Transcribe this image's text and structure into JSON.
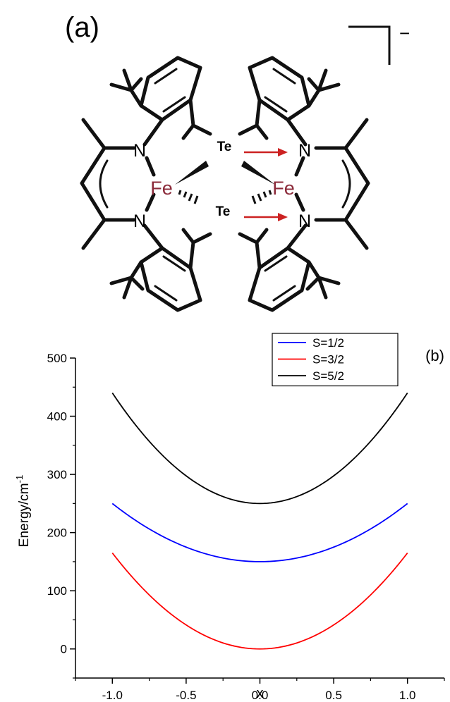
{
  "panel_a": {
    "label": "(a)",
    "charge": "−",
    "atoms": {
      "fe_left": "Fe",
      "fe_right": "Fe",
      "te_top": "Te",
      "te_bottom": "Te",
      "n_left_top": "N",
      "n_left_bottom": "N",
      "n_right_top": "N",
      "n_right_bottom": "N"
    },
    "colors": {
      "fe": "#8b2a3a",
      "arrow": "#cc2222",
      "bond": "#111111"
    }
  },
  "chart_data": {
    "type": "line",
    "panel_label": "(b)",
    "xlabel": "x",
    "ylabel": "Energy/cm",
    "ylabel_superscript": "-1",
    "xlim": [
      -1.25,
      1.25
    ],
    "ylim": [
      -50,
      500
    ],
    "xticks": [
      -1.0,
      -0.5,
      0.0,
      0.5,
      1.0
    ],
    "xtick_labels": [
      "-1.0",
      "-0.5",
      "0.0",
      "0.5",
      "1.0"
    ],
    "yticks": [
      0,
      100,
      200,
      300,
      400,
      500
    ],
    "ytick_labels": [
      "0",
      "100",
      "200",
      "300",
      "400",
      "500"
    ],
    "grid": false,
    "legend_position": "top-right",
    "series": [
      {
        "name": "S=1/2",
        "color": "#0000ff",
        "x": [
          -1.0,
          -0.75,
          -0.5,
          -0.25,
          0.0,
          0.25,
          0.5,
          0.75,
          1.0
        ],
        "y": [
          250,
          206,
          175,
          156,
          150,
          156,
          175,
          206,
          250
        ]
      },
      {
        "name": "S=3/2",
        "color": "#ff0000",
        "x": [
          -1.0,
          -0.75,
          -0.5,
          -0.25,
          0.0,
          0.25,
          0.5,
          0.75,
          1.0
        ],
        "y": [
          165,
          93,
          41,
          10,
          0,
          10,
          41,
          93,
          165
        ]
      },
      {
        "name": "S=5/2",
        "color": "#000000",
        "x": [
          -1.0,
          -0.75,
          -0.5,
          -0.25,
          0.0,
          0.25,
          0.5,
          0.75,
          1.0
        ],
        "y": [
          440,
          357,
          298,
          262,
          250,
          262,
          298,
          357,
          440
        ]
      }
    ]
  }
}
